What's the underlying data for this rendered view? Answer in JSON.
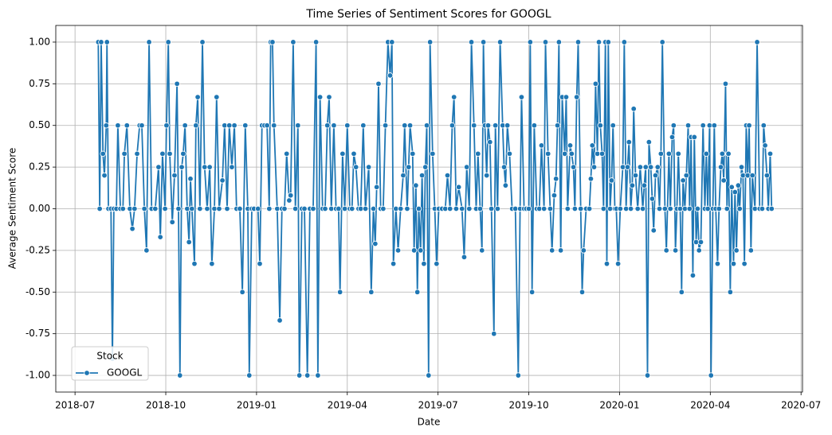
{
  "chart_data": {
    "type": "line",
    "title": "Time Series of Sentiment Scores for GOOGL",
    "x_label": "Date",
    "y_label": "Average Sentiment Score",
    "legend_title": "Stock",
    "legend": "lower left",
    "grid": true,
    "xlim": [
      2018.447,
      2020.504
    ],
    "ylim": [
      -1.1,
      1.1
    ],
    "xticks": [
      {
        "value": 2018.5,
        "label": "2018-07"
      },
      {
        "value": 2018.75,
        "label": "2018-10"
      },
      {
        "value": 2019.0,
        "label": "2019-01"
      },
      {
        "value": 2019.25,
        "label": "2019-04"
      },
      {
        "value": 2019.5,
        "label": "2019-07"
      },
      {
        "value": 2019.75,
        "label": "2019-10"
      },
      {
        "value": 2020.0,
        "label": "2020-01"
      },
      {
        "value": 2020.25,
        "label": "2020-04"
      },
      {
        "value": 2020.5,
        "label": "2020-07"
      }
    ],
    "yticks": [
      {
        "value": -1,
        "label": "-1.00"
      },
      {
        "value": -0.75,
        "label": "-0.75"
      },
      {
        "value": -0.5,
        "label": "-0.50"
      },
      {
        "value": -0.25,
        "label": "-0.25"
      },
      {
        "value": 0,
        "label": "0.00"
      },
      {
        "value": 0.25,
        "label": "0.25"
      },
      {
        "value": 0.5,
        "label": "0.50"
      },
      {
        "value": 0.75,
        "label": "0.75"
      },
      {
        "value": 1,
        "label": "1.00"
      }
    ],
    "x": [
      2018.564,
      2018.568,
      2018.572,
      2018.577,
      2018.581,
      2018.586,
      2018.588,
      2018.592,
      2018.599,
      2018.603,
      2018.607,
      2018.614,
      2018.618,
      2018.625,
      2018.632,
      2018.636,
      2018.643,
      2018.651,
      2018.658,
      2018.664,
      2018.671,
      2018.678,
      2018.684,
      2018.691,
      2018.697,
      2018.704,
      2018.711,
      2018.721,
      2018.73,
      2018.735,
      2018.741,
      2018.748,
      2018.752,
      2018.757,
      2018.761,
      2018.768,
      2018.774,
      2018.781,
      2018.785,
      2018.789,
      2018.794,
      2018.798,
      2018.803,
      2018.809,
      2018.814,
      2018.818,
      2018.822,
      2018.829,
      2018.833,
      2018.838,
      2018.844,
      2018.851,
      2018.857,
      2018.864,
      2018.871,
      2018.877,
      2018.884,
      2018.89,
      2018.897,
      2018.906,
      2018.912,
      2018.919,
      2018.925,
      2018.932,
      2018.939,
      2018.945,
      2018.954,
      2018.961,
      2018.969,
      2018.976,
      2018.98,
      2018.987,
      2018.993,
      2019.004,
      2019.009,
      2019.015,
      2019.022,
      2019.029,
      2019.035,
      2019.039,
      2019.044,
      2019.048,
      2019.057,
      2019.064,
      2019.07,
      2019.077,
      2019.083,
      2019.09,
      2019.094,
      2019.101,
      2019.107,
      2019.114,
      2019.118,
      2019.125,
      2019.132,
      2019.14,
      2019.147,
      2019.156,
      2019.164,
      2019.169,
      2019.175,
      2019.182,
      2019.189,
      2019.195,
      2019.2,
      2019.206,
      2019.213,
      2019.219,
      2019.226,
      2019.23,
      2019.237,
      2019.243,
      2019.25,
      2019.257,
      2019.263,
      2019.268,
      2019.274,
      2019.281,
      2019.287,
      2019.294,
      2019.3,
      2019.309,
      2019.316,
      2019.322,
      2019.327,
      2019.331,
      2019.336,
      2019.342,
      2019.349,
      2019.355,
      2019.362,
      2019.368,
      2019.373,
      2019.377,
      2019.384,
      2019.39,
      2019.397,
      2019.404,
      2019.408,
      2019.415,
      2019.419,
      2019.423,
      2019.43,
      2019.434,
      2019.439,
      2019.443,
      2019.447,
      2019.452,
      2019.456,
      2019.461,
      2019.465,
      2019.469,
      2019.474,
      2019.478,
      2019.485,
      2019.491,
      2019.496,
      2019.502,
      2019.511,
      2019.52,
      2019.526,
      2019.533,
      2019.539,
      2019.544,
      2019.55,
      2019.557,
      2019.566,
      2019.572,
      2019.579,
      2019.586,
      2019.592,
      2019.599,
      2019.605,
      2019.61,
      2019.616,
      2019.621,
      2019.625,
      2019.629,
      2019.634,
      2019.638,
      2019.643,
      2019.647,
      2019.654,
      2019.658,
      2019.664,
      2019.671,
      2019.678,
      2019.682,
      2019.686,
      2019.691,
      2019.697,
      2019.704,
      2019.713,
      2019.721,
      2019.726,
      2019.73,
      2019.737,
      2019.743,
      2019.75,
      2019.754,
      2019.759,
      2019.765,
      2019.772,
      2019.779,
      2019.785,
      2019.792,
      2019.796,
      2019.803,
      2019.809,
      2019.814,
      2019.82,
      2019.825,
      2019.829,
      2019.833,
      2019.838,
      2019.842,
      2019.849,
      2019.853,
      2019.857,
      2019.864,
      2019.868,
      2019.873,
      2019.877,
      2019.882,
      2019.886,
      2019.893,
      2019.897,
      2019.901,
      2019.908,
      2019.917,
      2019.921,
      2019.925,
      2019.93,
      2019.934,
      2019.939,
      2019.943,
      2019.947,
      2019.952,
      2019.956,
      2019.961,
      2019.965,
      2019.969,
      2019.974,
      2019.978,
      2019.982,
      2019.987,
      2019.991,
      2019.996,
      2020.002,
      2020.009,
      2020.013,
      2020.018,
      2020.022,
      2020.026,
      2020.031,
      2020.035,
      2020.039,
      2020.044,
      2020.05,
      2020.057,
      2020.064,
      2020.068,
      2020.072,
      2020.077,
      2020.081,
      2020.086,
      2020.09,
      2020.094,
      2020.099,
      2020.105,
      2020.11,
      2020.114,
      2020.118,
      2020.125,
      2020.129,
      2020.136,
      2020.14,
      2020.145,
      2020.149,
      2020.154,
      2020.158,
      2020.162,
      2020.167,
      2020.171,
      2020.175,
      2020.18,
      2020.184,
      2020.189,
      2020.193,
      2020.197,
      2020.202,
      2020.206,
      2020.211,
      2020.215,
      2020.219,
      2020.224,
      2020.23,
      2020.235,
      2020.239,
      2020.243,
      2020.248,
      2020.252,
      2020.257,
      2020.261,
      2020.265,
      2020.27,
      2020.274,
      2020.279,
      2020.283,
      2020.287,
      2020.292,
      2020.296,
      2020.3,
      2020.305,
      2020.309,
      2020.314,
      2020.318,
      2020.322,
      2020.327,
      2020.331,
      2020.336,
      2020.34,
      2020.344,
      2020.349,
      2020.353,
      2020.357,
      2020.362,
      2020.366,
      2020.373,
      2020.379,
      2020.386,
      2020.393,
      2020.397,
      2020.401,
      2020.406,
      2020.41,
      2020.415,
      2020.419
    ],
    "series": [
      {
        "name": "GOOGL",
        "color": "#1f77b4",
        "values": [
          1,
          0,
          1,
          0.33,
          0.2,
          0.5,
          1,
          0,
          0,
          -0.9,
          0,
          0,
          0.5,
          0,
          0,
          0.33,
          0.5,
          0,
          -0.12,
          0,
          0.33,
          0.5,
          0.5,
          0,
          -0.25,
          1,
          0,
          0,
          0.25,
          -0.17,
          0.33,
          0,
          0.5,
          1,
          0.33,
          -0.08,
          0.2,
          0.75,
          0,
          -1,
          0.25,
          0.33,
          0.5,
          0,
          -0.2,
          0.18,
          0,
          -0.33,
          0.5,
          0.67,
          0,
          1,
          0.25,
          0,
          0.25,
          -0.33,
          0,
          0.67,
          0,
          0.17,
          0.5,
          0,
          0.5,
          0.25,
          0.5,
          0,
          0,
          -0.5,
          0.5,
          0,
          -1,
          0,
          0,
          0,
          -0.33,
          0.5,
          0.5,
          0.5,
          0,
          1,
          1,
          0.5,
          0,
          -0.67,
          0,
          0,
          0.33,
          0.05,
          0.08,
          1,
          0,
          0.5,
          -1,
          0,
          0,
          -1,
          0,
          0,
          1,
          -1,
          0.67,
          0,
          0,
          0.5,
          0.67,
          0,
          0.5,
          0,
          0,
          -0.5,
          0.33,
          0,
          0.5,
          0,
          0,
          0.33,
          0.25,
          0,
          0,
          0.5,
          0,
          0.25,
          -0.5,
          0,
          -0.21,
          0.13,
          0.75,
          0,
          0,
          0.5,
          1,
          0.8,
          1,
          -0.33,
          0,
          -0.25,
          0,
          0.2,
          0.5,
          0,
          0.25,
          0.5,
          0.33,
          -0.25,
          0.14,
          -0.5,
          0,
          -0.25,
          0.2,
          -0.33,
          0.25,
          0.5,
          -1,
          1,
          0.33,
          0,
          -0.33,
          0,
          0,
          0,
          0.2,
          0,
          0.5,
          0.67,
          0,
          0.13,
          0,
          -0.29,
          0.25,
          0,
          1,
          0.5,
          0,
          0.33,
          0,
          -0.25,
          1,
          0.5,
          0.2,
          0.5,
          0.4,
          0,
          -0.75,
          0.5,
          0,
          1,
          0.5,
          0.25,
          0.14,
          0.5,
          0.33,
          0,
          0,
          -1,
          0,
          0.67,
          0,
          0,
          0,
          1,
          -0.5,
          0.5,
          0,
          0,
          0.38,
          0,
          1,
          0.33,
          0,
          -0.25,
          0.08,
          0.18,
          0.5,
          1,
          -0.25,
          0.67,
          0.33,
          0.67,
          0,
          0.38,
          0.33,
          0.25,
          0,
          0.67,
          1,
          0,
          -0.5,
          -0.25,
          0,
          0,
          0.18,
          0.38,
          0.25,
          0.75,
          0.33,
          1,
          0.5,
          0.33,
          0,
          1,
          -0.33,
          1,
          0,
          0.17,
          0.5,
          0,
          0,
          -0.33,
          0,
          0.25,
          1,
          0,
          0.25,
          0.4,
          0,
          0.14,
          0.6,
          0.2,
          0,
          0.25,
          0,
          0.14,
          0.25,
          -1,
          0.4,
          0.25,
          0.06,
          -0.13,
          0.2,
          0.25,
          0,
          0.33,
          1,
          0,
          -0.25,
          0.33,
          0,
          0.43,
          0.5,
          -0.25,
          0,
          0.33,
          0,
          -0.5,
          0.17,
          0,
          0.2,
          0.5,
          0,
          0.43,
          -0.4,
          0.43,
          -0.2,
          0,
          -0.25,
          -0.2,
          0.5,
          0,
          0.33,
          0,
          0.5,
          -1,
          0,
          0.5,
          0,
          -0.33,
          0,
          0.25,
          0.33,
          0.17,
          0.75,
          0,
          0.33,
          -0.5,
          0.13,
          -0.33,
          0.1,
          -0.25,
          0.14,
          0,
          0.25,
          0.2,
          -0.33,
          0.5,
          0.2,
          0.5,
          -0.25,
          0.2,
          0,
          1,
          0,
          0,
          0.5,
          0.38,
          0.2,
          0,
          0.33,
          0
        ]
      }
    ]
  }
}
